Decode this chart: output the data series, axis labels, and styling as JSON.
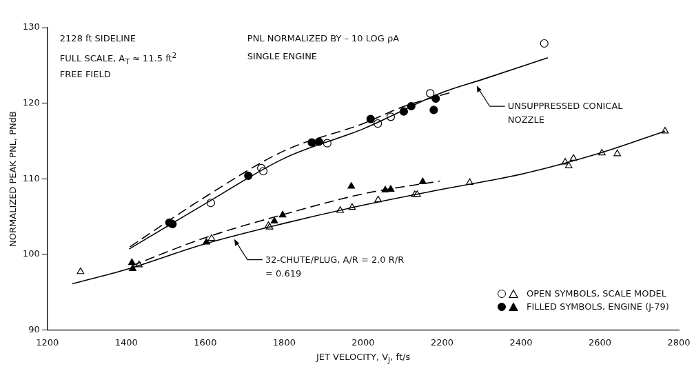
{
  "chart_data": {
    "type": "scatter",
    "xlabel": "JET VELOCITY, V$_{J}$, ft/s",
    "ylabel": "NORMALIZED PEAK PNL, PNdB",
    "xlim": [
      1200,
      2800
    ],
    "xticks": [
      1200,
      1400,
      1600,
      1800,
      2000,
      2200,
      2400,
      2600,
      2800
    ],
    "ylim": [
      90,
      130
    ],
    "yticks": [
      90,
      100,
      110,
      120,
      130
    ],
    "grid": false,
    "legend": "bottom right",
    "series": [
      {
        "type": "line",
        "line_style": "solid",
        "marker": "none",
        "color": "#000000",
        "x": [
          1407,
          1600,
          1800,
          2000,
          2200,
          2300,
          2468
        ],
        "values": [
          100.7,
          106.7,
          112.7,
          116.6,
          121.4,
          123.1,
          126.0
        ]
      },
      {
        "type": "line",
        "line_style": "dashed",
        "marker": "none",
        "color": "#000000",
        "x": [
          1409,
          1600,
          1800,
          2000,
          2100,
          2221
        ],
        "values": [
          101.0,
          107.6,
          113.7,
          117.3,
          119.5,
          121.4
        ]
      },
      {
        "type": "line",
        "line_style": "solid",
        "marker": "none",
        "color": "#000000",
        "x": [
          1263,
          1400,
          1600,
          1800,
          2000,
          2200,
          2400,
          2600,
          2765
        ],
        "values": [
          96.1,
          98.0,
          101.4,
          104.1,
          106.5,
          108.6,
          110.6,
          113.4,
          116.3
        ]
      },
      {
        "type": "line",
        "line_style": "dashed",
        "marker": "none",
        "color": "#000000",
        "x": [
          1414,
          1600,
          1800,
          2000,
          2195
        ],
        "values": [
          98.5,
          102.2,
          105.3,
          108.0,
          109.7
        ]
      },
      {
        "marker": "circle",
        "color": "#ffffff",
        "x": [
          1614,
          1742,
          1747,
          1909,
          2037,
          2070,
          2170,
          2459
        ],
        "values": [
          106.8,
          111.4,
          111.0,
          114.7,
          117.3,
          118.2,
          121.3,
          127.9
        ]
      },
      {
        "name": "OPEN SYMBOLS, SCALE MODEL",
        "marker": "triangle",
        "color": "#ffffff",
        "x": [
          1284,
          1432,
          1616,
          1760,
          1763,
          1942,
          1972,
          2038,
          2131,
          2137,
          2270,
          2512,
          2521,
          2533,
          2605,
          2644,
          2765
        ],
        "values": [
          97.7,
          98.6,
          102.1,
          103.8,
          103.6,
          105.8,
          106.2,
          107.2,
          107.9,
          107.9,
          109.5,
          112.2,
          111.7,
          112.7,
          113.4,
          113.3,
          116.3
        ]
      },
      {
        "marker": "circle",
        "color": "#000000",
        "x": [
          1509,
          1517,
          1709,
          1870,
          1888,
          2019,
          2103,
          2122,
          2179,
          2184
        ],
        "values": [
          104.2,
          104.0,
          110.4,
          114.8,
          114.9,
          117.9,
          118.9,
          119.6,
          119.1,
          120.6
        ]
      },
      {
        "name": "FILLED SYMBOLS, ENGINE (J-79)",
        "marker": "triangle",
        "color": "#000000",
        "x": [
          1414,
          1416,
          1603,
          1775,
          1796,
          1970,
          2056,
          2070,
          2151
        ],
        "values": [
          98.9,
          98.1,
          101.6,
          104.4,
          105.2,
          109.0,
          108.5,
          108.6,
          109.6
        ]
      }
    ],
    "annotations": [
      "2128 ft SIDELINE",
      "FULL SCALE, A$_{T}$ ≈ 11.5 ft$^{2}$",
      "FREE FIELD",
      "PNL NORMALIZED BY – 10 LOG ρA",
      "SINGLE ENGINE",
      {
        "text": "UNSUPPRESSED CONICAL NOZZLE",
        "x": 2286,
        "y": 122.5
      },
      {
        "text": "32-CHUTE/PLUG,  A/R = 2.0 R/R = 0.619",
        "x": 1672,
        "y": 102.2
      }
    ]
  }
}
